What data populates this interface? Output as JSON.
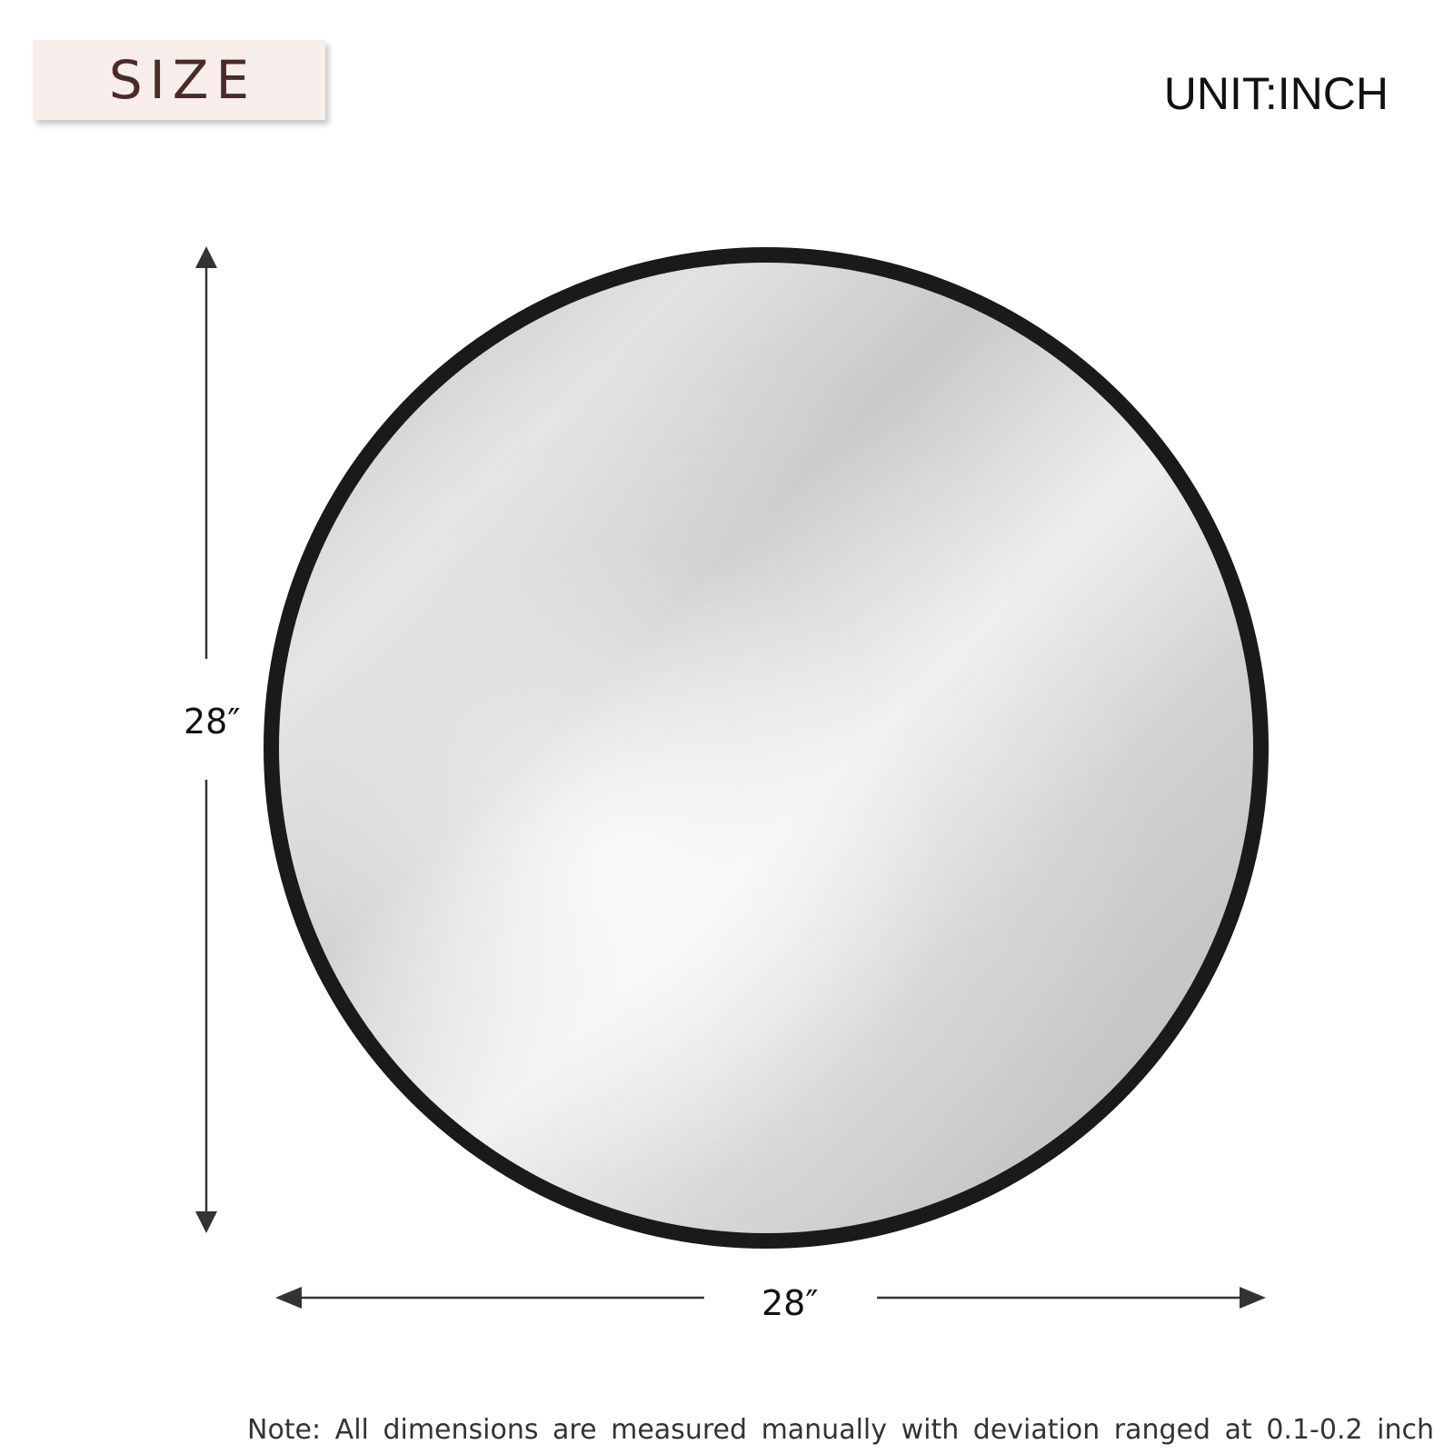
{
  "badge": {
    "label": "SIZE"
  },
  "unit": {
    "label": "UNIT:INCH"
  },
  "dimensions": {
    "height_label": "28″",
    "width_label": "28″",
    "height_value": 28,
    "width_value": 28,
    "unit": "inch"
  },
  "note": {
    "text": "Note: All dimensions are measured manually with deviation ranged at 0.1-0.2 inch"
  },
  "colors": {
    "badge_bg": "#f7eeeb",
    "badge_text": "#4a2b27",
    "frame": "#1a1a1a",
    "arrow": "#333333"
  }
}
